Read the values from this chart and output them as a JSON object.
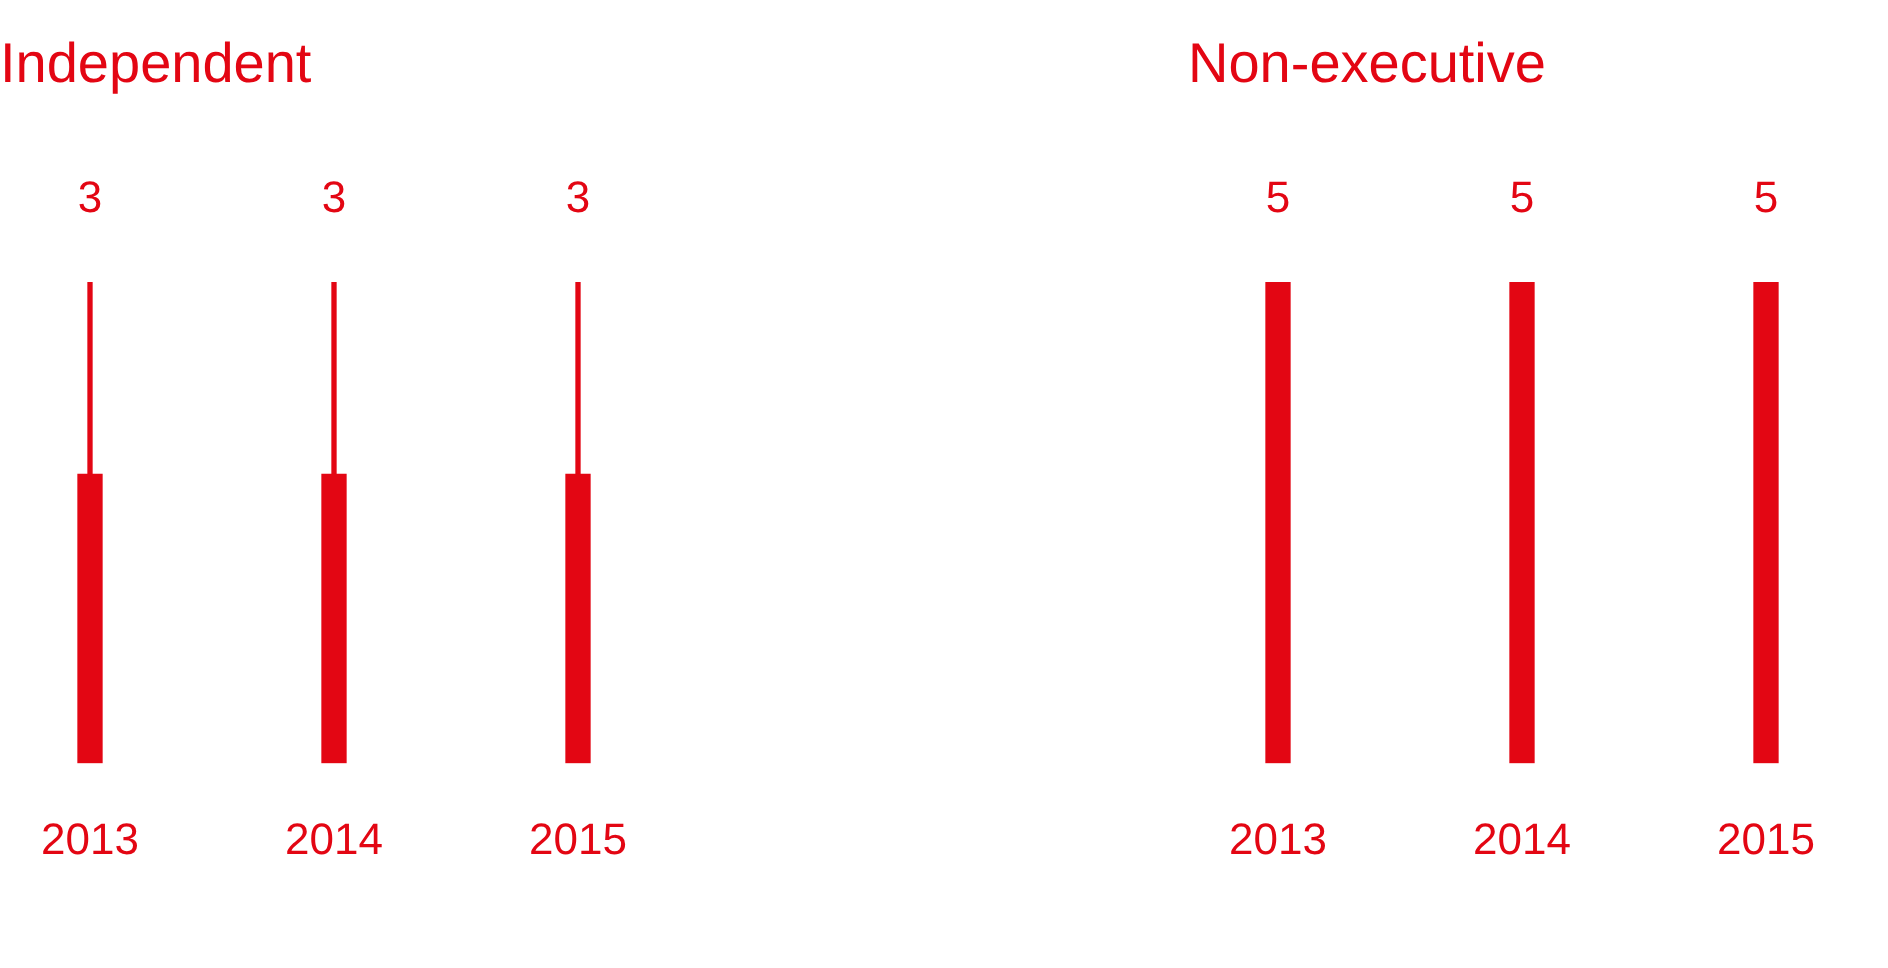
{
  "chart_data": [
    {
      "type": "bar",
      "title": "Independent",
      "categories": [
        "2013",
        "2014",
        "2015"
      ],
      "stacked": true,
      "tick_labels": "x",
      "grid": false,
      "legend": false,
      "series": [
        {
          "color": "#e30613",
          "values": [
            3,
            3,
            3
          ],
          "value_labels": [
            "3",
            "3",
            "3"
          ]
        },
        {
          "color": "#e30613",
          "values": [
            2,
            2,
            2
          ],
          "line_style": "dotted"
        }
      ]
    },
    {
      "type": "bar",
      "title": "Non-executive",
      "categories": [
        "2013",
        "2014",
        "2015"
      ],
      "tick_labels": "x",
      "grid": false,
      "legend": false,
      "data_labels": true,
      "series": [
        {
          "color": "#e30613",
          "values": [
            5,
            5,
            5
          ]
        }
      ]
    }
  ]
}
